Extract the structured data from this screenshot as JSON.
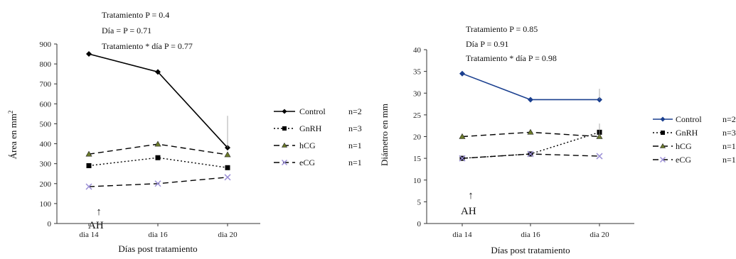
{
  "chart_data": [
    {
      "type": "line",
      "title": "",
      "xlabel": "Días post tratamiento",
      "ylabel": "Área en mm²",
      "ylabel_base": "Área  en mm",
      "ylabel_sup": "2",
      "ylim": [
        0,
        900
      ],
      "yticks": [
        0,
        100,
        200,
        300,
        400,
        500,
        600,
        700,
        800,
        900
      ],
      "categories": [
        "dia 14",
        "dia 16",
        "dia 20"
      ],
      "stats": [
        "Tratamiento P = 0.4",
        "Día = P = 0.71",
        "Tratamiento * día P = 0.77"
      ],
      "annotation": "AH",
      "annotation_arrow": "↑",
      "legend_position": "right",
      "series": [
        {
          "name": "Control",
          "n_label": "n=2",
          "values": [
            850,
            760,
            380
          ],
          "color": "#000000",
          "dash": "",
          "marker": "diamond"
        },
        {
          "name": "GnRH",
          "n_label": "n=3",
          "values": [
            290,
            330,
            280
          ],
          "color": "#000000",
          "dash": "2,3",
          "marker": "square"
        },
        {
          "name": "hCG",
          "n_label": "n=1",
          "values": [
            348,
            398,
            345
          ],
          "color": "#000000",
          "dash": "8,5",
          "marker": "triangle"
        },
        {
          "name": "eCG",
          "n_label": "n=1",
          "values": [
            185,
            200,
            232
          ],
          "color": "#000000",
          "dash": "8,5",
          "marker": "x"
        }
      ]
    },
    {
      "type": "line",
      "title": "",
      "xlabel": "Días post tratamiento",
      "ylabel": "Diámetro en mm",
      "ylim": [
        0,
        40
      ],
      "yticks": [
        0,
        5,
        10,
        15,
        20,
        25,
        30,
        35,
        40
      ],
      "categories": [
        "dia 14",
        "dia 16",
        "dia 20"
      ],
      "stats": [
        "Tratamiento P = 0.85",
        "Día P = 0.91",
        "Tratamiento * día P = 0.98"
      ],
      "annotation": "AH",
      "annotation_arrow": "↑",
      "legend_position": "right",
      "series": [
        {
          "name": "Control",
          "n_label": "n=2",
          "values": [
            34.5,
            28.5,
            28.5
          ],
          "color": "#1a3f8f",
          "dash": "",
          "marker": "diamond"
        },
        {
          "name": "GnRH",
          "n_label": "n=3",
          "values": [
            15.0,
            16.0,
            21.0
          ],
          "color": "#000000",
          "dash": "2,3",
          "marker": "square"
        },
        {
          "name": "hCG",
          "n_label": "n=1",
          "values": [
            20.0,
            21.0,
            20.0
          ],
          "color": "#000000",
          "dash": "8,5",
          "marker": "triangle"
        },
        {
          "name": "eCG",
          "n_label": "n=1",
          "values": [
            15.0,
            16.0,
            15.5
          ],
          "color": "#000000",
          "dash": "8,5",
          "marker": "x"
        }
      ],
      "marker_colors": {
        "eCG": "#9b8fd6"
      }
    }
  ],
  "marker_colors": {
    "hCG": "#6b7a2a",
    "eCG": "#9b8fd6"
  }
}
